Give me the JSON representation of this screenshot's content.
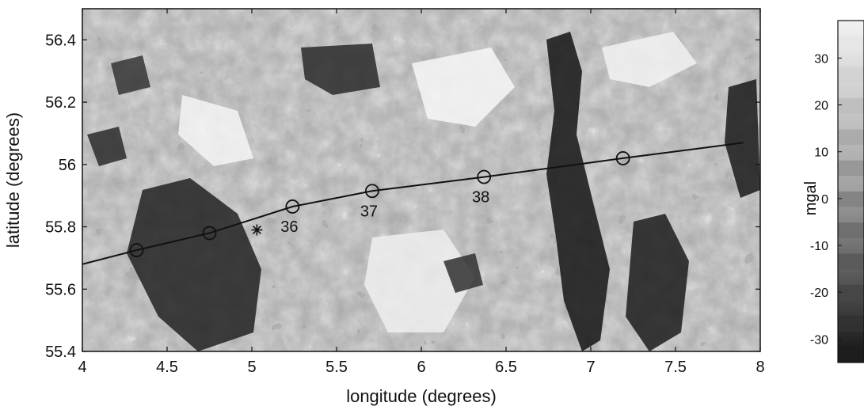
{
  "chart_data": {
    "type": "heatmap",
    "title": "",
    "xlabel": "longitude (degrees)",
    "ylabel": "latitude (degrees)",
    "xlim": [
      4,
      8
    ],
    "ylim": [
      55.4,
      56.5
    ],
    "x_ticks": [
      4,
      4.5,
      5,
      5.5,
      6,
      6.5,
      7,
      7.5,
      8
    ],
    "x_tick_labels": [
      "4",
      "4.5",
      "5",
      "5.5",
      "6",
      "6.5",
      "7",
      "7.5",
      "8"
    ],
    "y_ticks": [
      55.4,
      55.6,
      55.8,
      56,
      56.2,
      56.4
    ],
    "y_tick_labels": [
      "55.4",
      "55.6",
      "55.8",
      "56",
      "56.2",
      "56.4"
    ],
    "grid": false,
    "colorbar": {
      "label": "mgal",
      "ticks": [
        30,
        20,
        10,
        0,
        -10,
        -20,
        -30
      ],
      "tick_labels": [
        "30",
        "20",
        "10",
        "0",
        "-10",
        "-20",
        "-30"
      ],
      "range": [
        -35,
        38
      ],
      "colormap": "grayscale, banded"
    },
    "track": {
      "x": [
        4.0,
        4.32,
        4.75,
        5.24,
        5.71,
        6.37,
        7.19,
        7.9
      ],
      "y": [
        55.68,
        55.725,
        55.78,
        55.865,
        55.915,
        55.96,
        56.02,
        56.07
      ]
    },
    "waypoints": [
      {
        "x": 4.32,
        "y": 55.725,
        "label": ""
      },
      {
        "x": 4.75,
        "y": 55.78,
        "label": ""
      },
      {
        "x": 5.24,
        "y": 55.865,
        "label": "36"
      },
      {
        "x": 5.71,
        "y": 55.915,
        "label": "37"
      },
      {
        "x": 6.37,
        "y": 55.96,
        "label": "38"
      },
      {
        "x": 7.19,
        "y": 56.02,
        "label": ""
      }
    ],
    "star_marker": {
      "x": 5.03,
      "y": 55.79
    }
  },
  "colors": {
    "background": "#ffffff",
    "ink": "#111111",
    "field_mid": "#a8a8a8"
  }
}
